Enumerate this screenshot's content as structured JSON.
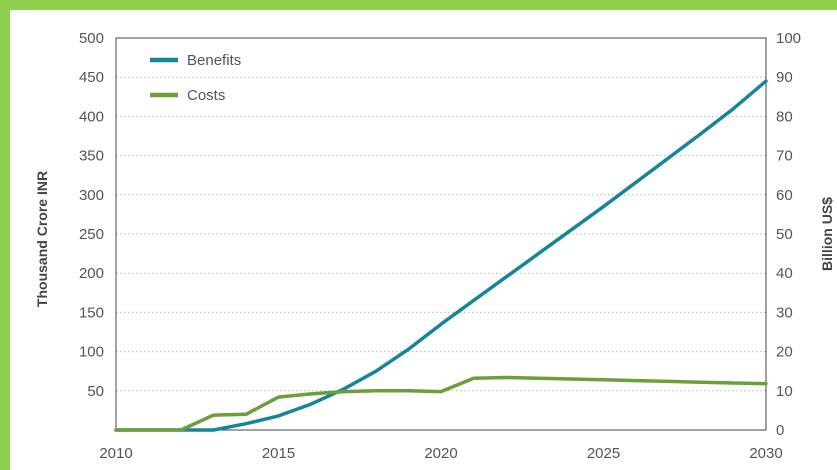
{
  "chart_data": {
    "type": "line",
    "title": "",
    "xlabel": "",
    "ylabel": "Thousand Crore INR",
    "y2label": "Billion US$",
    "xlim": [
      2010,
      2030
    ],
    "ylim": [
      0,
      500
    ],
    "y2lim": [
      0,
      100
    ],
    "x_ticks": [
      "2010",
      "2015",
      "2020",
      "2025",
      "2030"
    ],
    "y_ticks": [
      "500",
      "450",
      "400",
      "350",
      "300",
      "250",
      "200",
      "150",
      "100",
      "50"
    ],
    "y2_ticks": [
      "100",
      "90",
      "80",
      "70",
      "60",
      "50",
      "40",
      "30",
      "20",
      "10",
      "0"
    ],
    "grid": "horizontal-dotted",
    "legend_position": "top-left",
    "colors": {
      "Benefits": "#15869a",
      "Costs": "#6aa03a"
    },
    "series": [
      {
        "name": "Benefits",
        "x": [
          2010,
          2011,
          2012,
          2013,
          2014,
          2015,
          2016,
          2017,
          2018,
          2019,
          2020,
          2021,
          2022,
          2023,
          2024,
          2025,
          2026,
          2027,
          2028,
          2029,
          2030
        ],
        "values": [
          0,
          0,
          0,
          0,
          8,
          18,
          33,
          52,
          75,
          103,
          135,
          165,
          195,
          225,
          255,
          285,
          316,
          347,
          378,
          410,
          445
        ]
      },
      {
        "name": "Costs",
        "x": [
          2010,
          2011,
          2012,
          2013,
          2014,
          2015,
          2016,
          2017,
          2018,
          2019,
          2020,
          2021,
          2022,
          2023,
          2024,
          2025,
          2026,
          2027,
          2028,
          2029,
          2030
        ],
        "values": [
          0,
          0,
          0,
          19,
          20,
          42,
          46,
          49,
          50,
          50,
          49,
          66,
          67,
          66,
          65,
          64,
          63,
          62,
          61,
          60,
          59
        ]
      }
    ]
  }
}
